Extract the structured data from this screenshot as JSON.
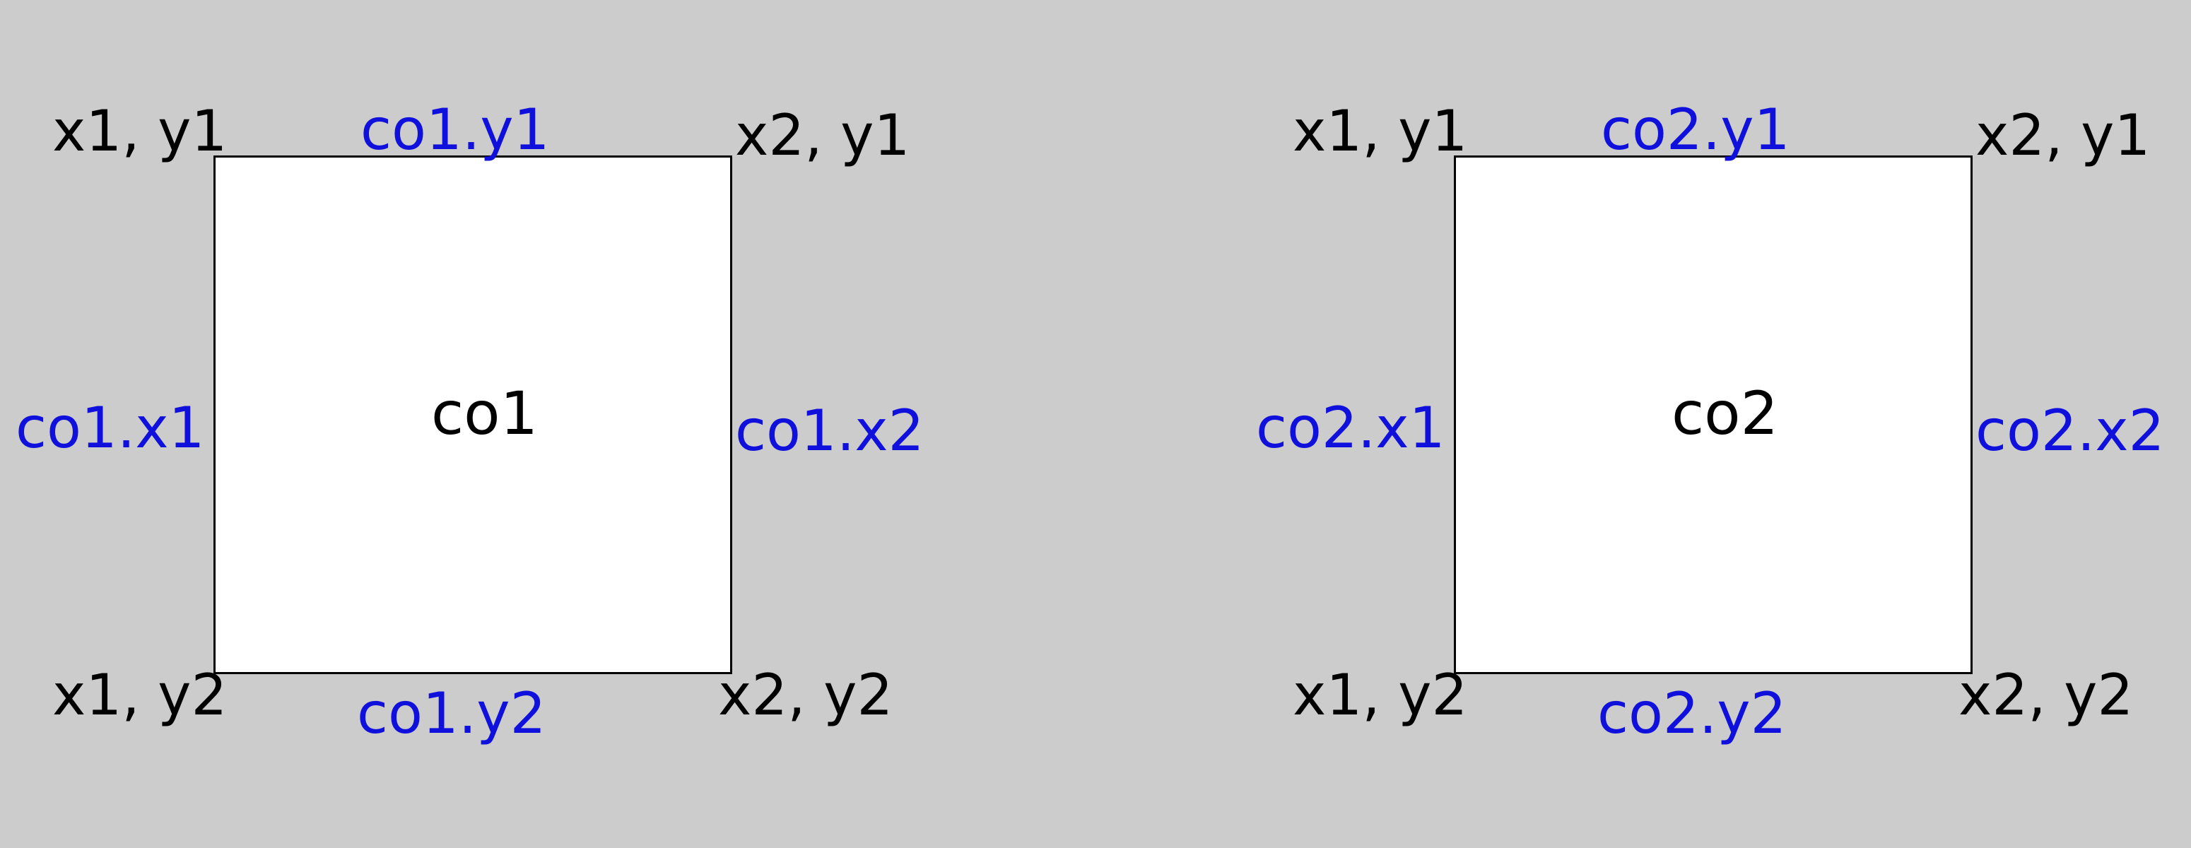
{
  "colors": {
    "background": "#cccccc",
    "box_fill": "#ffffff",
    "box_border": "#000000",
    "corner_label": "#000000",
    "edge_label": "#1010dd"
  },
  "diagrams": [
    {
      "name": "co1",
      "corners": {
        "top_left": "x1, y1",
        "top_right": "x2, y1",
        "bottom_left": "x1, y2",
        "bottom_right": "x2, y2"
      },
      "edges": {
        "top": "co1.y1",
        "left": "co1.x1",
        "right": "co1.x2",
        "bottom": "co1.y2"
      }
    },
    {
      "name": "co2",
      "corners": {
        "top_left": "x1, y1",
        "top_right": "x2, y1",
        "bottom_left": "x1, y2",
        "bottom_right": "x2, y2"
      },
      "edges": {
        "top": "co2.y1",
        "left": "co2.x1",
        "right": "co2.x2",
        "bottom": "co2.y2"
      }
    }
  ]
}
